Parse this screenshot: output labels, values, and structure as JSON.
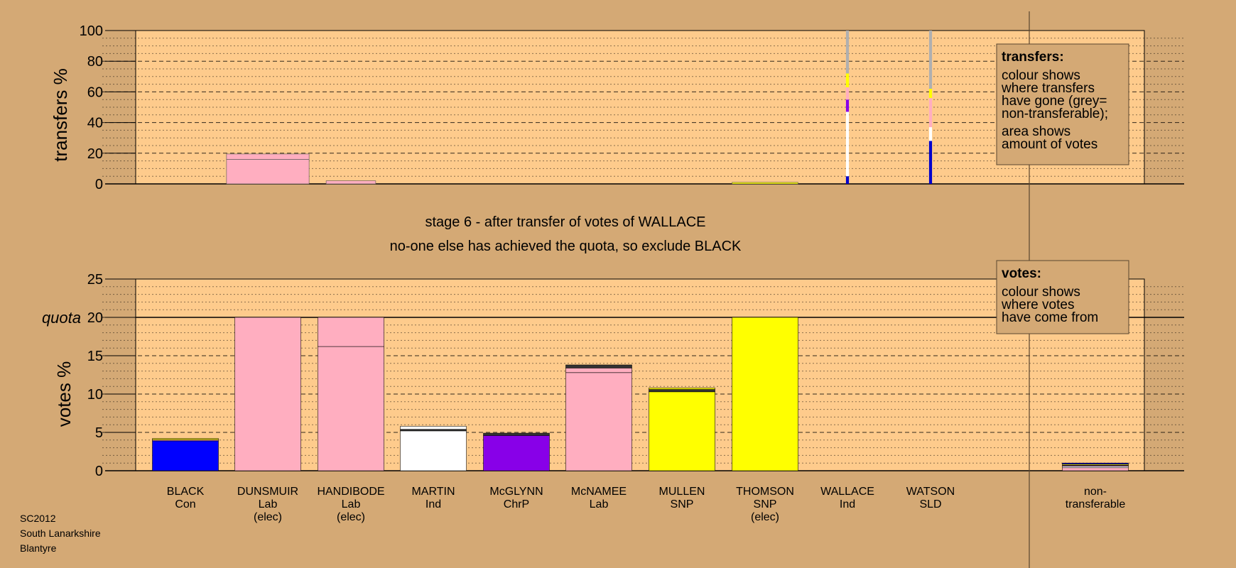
{
  "chart_data": [
    {
      "type": "bar",
      "name": "transfers",
      "ylabel": "transfers %",
      "ylim": [
        0,
        100
      ],
      "yticks": [
        0,
        20,
        40,
        60,
        80,
        100
      ],
      "grid": true,
      "legend": {
        "placement": "top-right",
        "title": "transfers:",
        "lines1": [
          "colour shows",
          "where transfers",
          "have gone (grey=",
          "non-transferable);"
        ],
        "lines2": [
          "area shows",
          "amount of votes"
        ]
      },
      "bars": [
        {
          "candidate": "DUNSMUIR",
          "width_rel": 1.25,
          "segments": [
            {
              "color": "#ffaec0",
              "from": 0,
              "to": 16
            },
            {
              "color": "#ffaec0",
              "from": 16,
              "to": 19.5
            }
          ]
        },
        {
          "candidate": "HANDIBODE",
          "width_rel": 0.75,
          "segments": [
            {
              "color": "#ffaec0",
              "from": 0,
              "to": 2
            }
          ]
        },
        {
          "candidate": "THOMSON",
          "width_rel": 1.0,
          "segments": [
            {
              "color": "#ffff00",
              "from": 0,
              "to": 1
            }
          ]
        },
        {
          "candidate": "WALLACE",
          "width_rel": 0.045,
          "segments": [
            {
              "color": "#0000cc",
              "from": 0,
              "to": 5
            },
            {
              "color": "#ffffff",
              "from": 5,
              "to": 55
            },
            {
              "color": "#8800e8",
              "from": 47,
              "to": 55
            },
            {
              "color": "#ffaec0",
              "from": 55,
              "to": 63
            },
            {
              "color": "#ffff00",
              "from": 63,
              "to": 72
            },
            {
              "color": "#b0b0b0",
              "from": 72,
              "to": 100
            }
          ]
        },
        {
          "candidate": "WATSON",
          "width_rel": 0.045,
          "segments": [
            {
              "color": "#0000cc",
              "from": 0,
              "to": 28
            },
            {
              "color": "#ffffff",
              "from": 28,
              "to": 37
            },
            {
              "color": "#ffaec0",
              "from": 37,
              "to": 56
            },
            {
              "color": "#ffff00",
              "from": 56,
              "to": 62
            },
            {
              "color": "#b0b0b0",
              "from": 62,
              "to": 100
            }
          ]
        }
      ]
    },
    {
      "type": "bar",
      "name": "votes",
      "ylabel": "votes %",
      "ylim": [
        0,
        25
      ],
      "yticks": [
        0,
        5,
        10,
        15,
        20,
        25
      ],
      "quota": {
        "label": "quota",
        "value": 20
      },
      "grid": true,
      "legend": {
        "placement": "top-right",
        "title": "votes:",
        "lines1": [
          "colour shows",
          "where votes",
          "have come from"
        ]
      },
      "categories": [
        {
          "name": "BLACK",
          "party": "Con",
          "note": ""
        },
        {
          "name": "DUNSMUIR",
          "party": "Lab",
          "note": "(elec)"
        },
        {
          "name": "HANDIBODE",
          "party": "Lab",
          "note": "(elec)"
        },
        {
          "name": "MARTIN",
          "party": "Ind",
          "note": ""
        },
        {
          "name": "McGLYNN",
          "party": "ChrP",
          "note": ""
        },
        {
          "name": "McNAMEE",
          "party": "Lab",
          "note": ""
        },
        {
          "name": "MULLEN",
          "party": "SNP",
          "note": ""
        },
        {
          "name": "THOMSON",
          "party": "SNP",
          "note": "(elec)"
        },
        {
          "name": "WALLACE",
          "party": "Ind",
          "note": ""
        },
        {
          "name": "WATSON",
          "party": "SLD",
          "note": ""
        }
      ],
      "nontransferable": {
        "line1": "non-",
        "line2": "transferable",
        "segments": [
          {
            "color": "#ffaec0",
            "from": 0,
            "to": 0.4
          },
          {
            "color": "#ffffff",
            "from": 0.4,
            "to": 0.6
          },
          {
            "color": "#8800e8",
            "from": 0.6,
            "to": 0.7
          },
          {
            "color": "#ffff00",
            "from": 0.7,
            "to": 0.85
          },
          {
            "color": "#0000cc",
            "from": 0.85,
            "to": 1.0
          }
        ]
      },
      "series": [
        [
          {
            "color": "#0000ff",
            "from": 0,
            "to": 3.9
          },
          {
            "color": "#ffaec0",
            "from": 3.9,
            "to": 4.05
          },
          {
            "color": "#ffff00",
            "from": 4.05,
            "to": 4.2
          }
        ],
        [
          {
            "color": "#ffaec0",
            "from": 0,
            "to": 20
          }
        ],
        [
          {
            "color": "#ffaec0",
            "from": 0,
            "to": 16.2
          },
          {
            "color": "#ffaec0",
            "from": 16.2,
            "to": 20
          }
        ],
        [
          {
            "color": "#ffffff",
            "from": 0,
            "to": 5.2
          },
          {
            "color": "#333333",
            "from": 5.2,
            "to": 5.4
          },
          {
            "color": "#ffffff",
            "from": 5.4,
            "to": 5.8
          }
        ],
        [
          {
            "color": "#8800e8",
            "from": 0,
            "to": 4.6
          },
          {
            "color": "#333333",
            "from": 4.6,
            "to": 4.9
          }
        ],
        [
          {
            "color": "#ffaec0",
            "from": 0,
            "to": 12.8
          },
          {
            "color": "#ffaec0",
            "from": 12.8,
            "to": 13.4
          },
          {
            "color": "#333333",
            "from": 13.4,
            "to": 13.8
          }
        ],
        [
          {
            "color": "#ffff00",
            "from": 0,
            "to": 10.3
          },
          {
            "color": "#333333",
            "from": 10.3,
            "to": 10.6
          },
          {
            "color": "#ffff00",
            "from": 10.6,
            "to": 10.8
          }
        ],
        [
          {
            "color": "#ffff00",
            "from": 0,
            "to": 20
          }
        ],
        [],
        []
      ]
    }
  ],
  "titles": {
    "stage": "stage 6 - after transfer of votes of WALLACE",
    "action": "no-one else has achieved the quota, so exclude BLACK"
  },
  "footer": {
    "election": "SC2012",
    "council": "South Lanarkshire",
    "ward": "Blantyre"
  },
  "colors": {
    "background": "#d4a975",
    "plot": "#fecb8c"
  }
}
